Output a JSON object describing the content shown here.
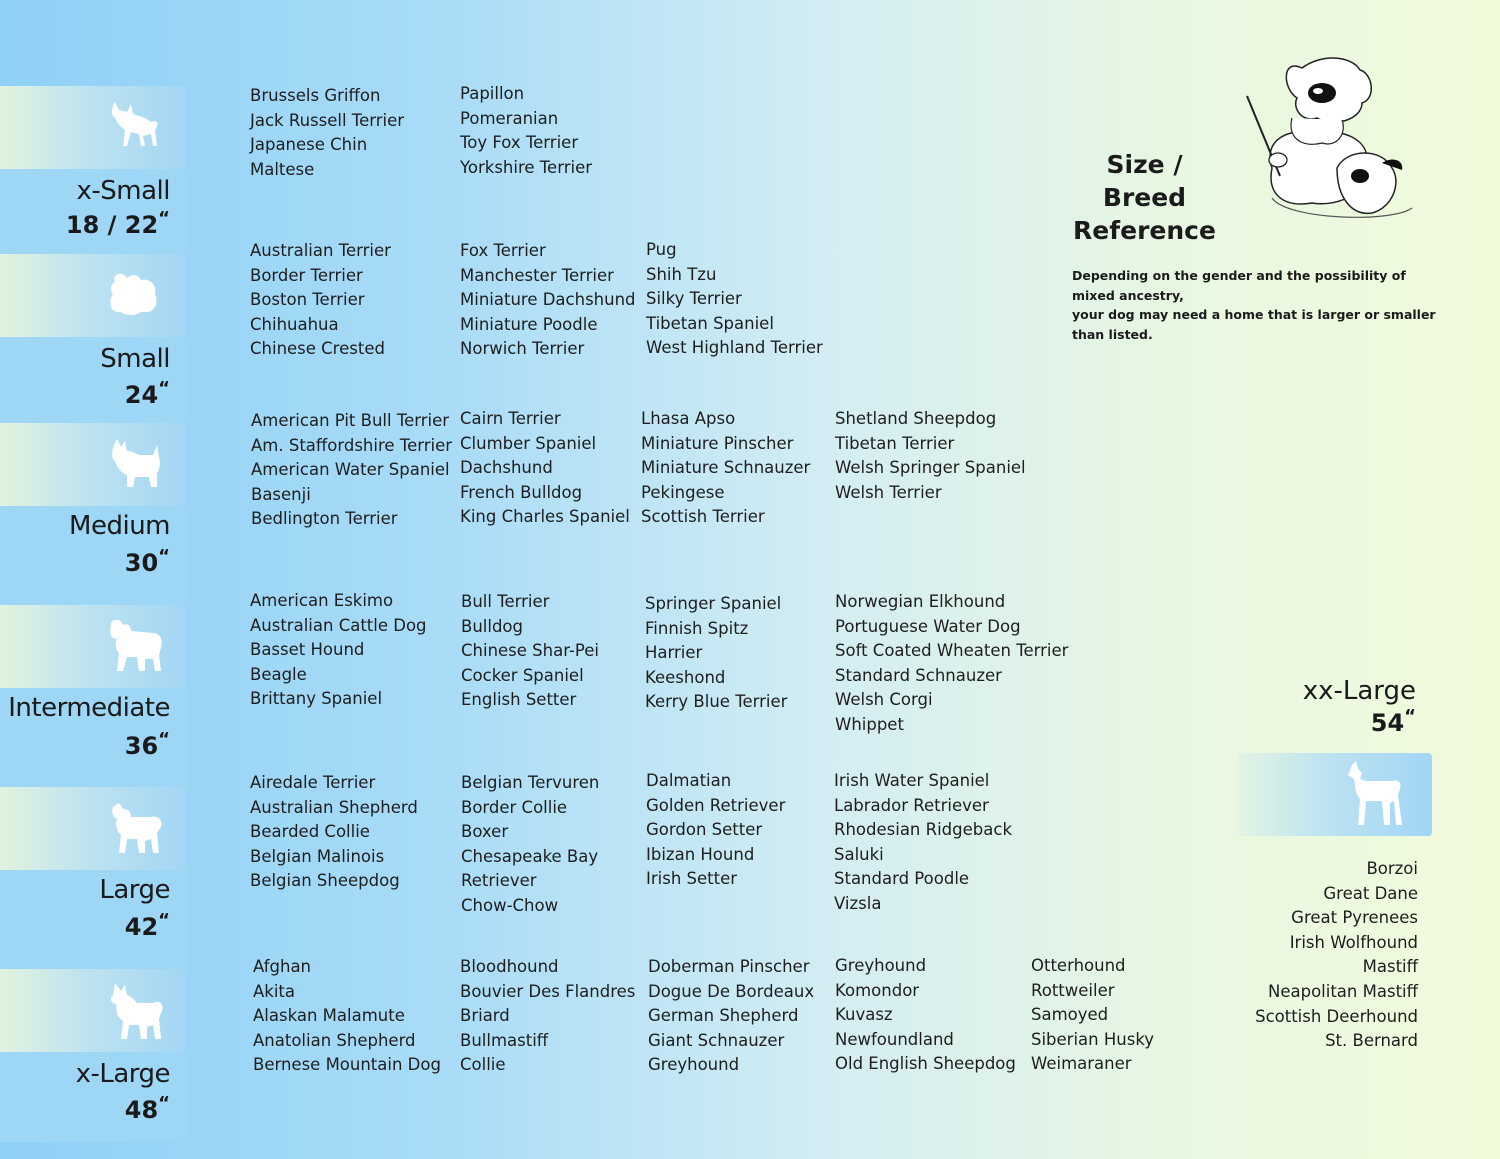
{
  "title": {
    "line1": "Size / Breed",
    "line2": "Reference"
  },
  "note": {
    "line1": "Depending on the gender and the possibility of mixed ancestry,",
    "line2": "your dog may need  a home that is larger or smaller than listed."
  },
  "sizes": [
    {
      "label": "x-Small",
      "size": "18 / 22",
      "icon": "chihuahua-icon",
      "columns": [
        [
          "Brussels Griffon",
          "Jack Russell Terrier",
          "Japanese Chin",
          "Maltese"
        ],
        [
          "Papillon",
          "Pomeranian",
          "Toy Fox Terrier",
          "Yorkshire Terrier"
        ]
      ]
    },
    {
      "label": "Small",
      "size": "24",
      "icon": "shih-tzu-icon",
      "columns": [
        [
          "Australian Terrier",
          "Border Terrier",
          "Boston Terrier",
          "Chihuahua",
          "Chinese Crested"
        ],
        [
          "Fox Terrier",
          "Manchester Terrier",
          "Miniature Dachshund",
          "Miniature Poodle",
          "Norwich Terrier"
        ],
        [
          "Pug",
          "Shih Tzu",
          "Silky Terrier",
          "Tibetan Spaniel",
          "West Highland Terrier"
        ]
      ]
    },
    {
      "label": "Medium",
      "size": "30",
      "icon": "terrier-icon",
      "columns": [
        [
          "American Pit Bull Terrier",
          "Am. Staffordshire Terrier",
          "American Water Spaniel",
          "Basenji",
          "Bedlington Terrier"
        ],
        [
          "Cairn Terrier",
          "Clumber Spaniel",
          "Dachshund",
          "French Bulldog",
          "King Charles Spaniel"
        ],
        [
          "Lhasa Apso",
          "Miniature Pinscher",
          "Miniature Schnauzer",
          "Pekingese",
          "Scottish Terrier"
        ],
        [
          "Shetland Sheepdog",
          "Tibetan Terrier",
          "Welsh Springer Spaniel",
          "Welsh Terrier"
        ]
      ]
    },
    {
      "label": "Intermediate",
      "size": "36",
      "icon": "spaniel-icon",
      "columns": [
        [
          "American Eskimo",
          "Australian Cattle Dog",
          "Basset Hound",
          "Beagle",
          "Brittany Spaniel"
        ],
        [
          "Bull Terrier",
          "Bulldog",
          "Chinese Shar-Pei",
          "Cocker Spaniel",
          "English Setter"
        ],
        [
          "Springer Spaniel",
          "Finnish Spitz",
          "Harrier",
          "Keeshond",
          "Kerry Blue Terrier"
        ],
        [
          "Norwegian Elkhound",
          "Portuguese Water Dog",
          "Soft Coated Wheaten Terrier",
          "Standard Schnauzer",
          "Welsh Corgi",
          "Whippet"
        ]
      ]
    },
    {
      "label": "Large",
      "size": "42",
      "icon": "retriever-icon",
      "columns": [
        [
          "Airedale Terrier",
          "Australian Shepherd",
          "Bearded Collie",
          "Belgian Malinois",
          "Belgian Sheepdog"
        ],
        [
          "Belgian Tervuren",
          "Border Collie",
          "Boxer",
          "Chesapeake Bay",
          "Retriever",
          "Chow-Chow"
        ],
        [
          "Dalmatian",
          "Golden Retriever",
          "Gordon Setter",
          "Ibizan Hound",
          "Irish Setter"
        ],
        [
          "Irish Water Spaniel",
          "Labrador Retriever",
          "Rhodesian Ridgeback",
          "Saluki",
          "Standard Poodle",
          "Vizsla"
        ]
      ]
    },
    {
      "label": "x-Large",
      "size": "48",
      "icon": "husky-icon",
      "columns": [
        [
          "Afghan",
          "Akita",
          "Alaskan Malamute",
          "Anatolian Shepherd",
          "Bernese Mountain Dog"
        ],
        [
          "Bloodhound",
          "Bouvier Des Flandres",
          "Briard",
          "Bullmastiff",
          "Collie"
        ],
        [
          "Doberman Pinscher",
          "Dogue De Bordeaux",
          "German Shepherd",
          "Giant Schnauzer",
          "Greyhound"
        ],
        [
          "Greyhound",
          "Komondor",
          "Kuvasz",
          "Newfoundland",
          "Old English Sheepdog"
        ],
        [
          "Otterhound",
          "Rottweiler",
          "Samoyed",
          "Siberian Husky",
          "Weimaraner"
        ]
      ]
    }
  ],
  "xxlarge": {
    "label": "xx-Large",
    "size": "54",
    "icon": "great-dane-icon",
    "breeds": [
      "Borzoi",
      "Great Dane",
      "Great Pyrenees",
      "Irish Wolfhound",
      "Mastiff",
      "Neapolitan Mastiff",
      "Scottish Deerhound",
      "St. Bernard"
    ]
  },
  "inch_mark": "“"
}
